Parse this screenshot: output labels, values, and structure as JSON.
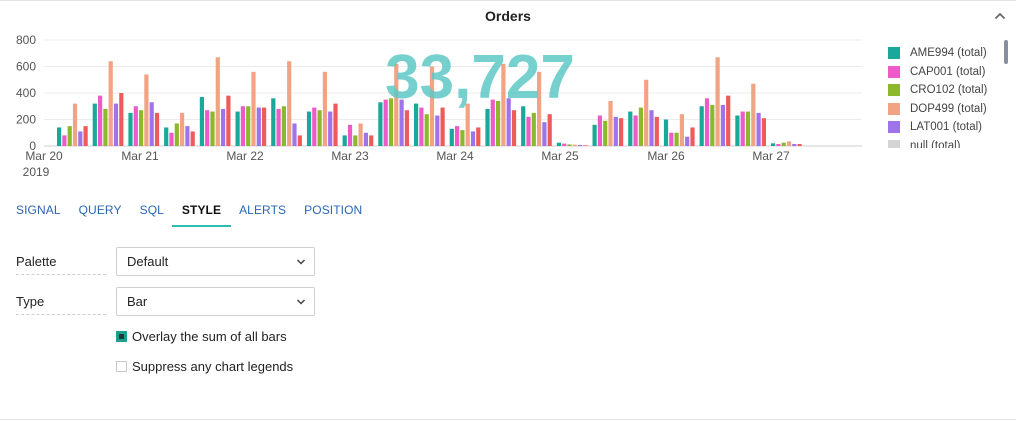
{
  "panel": {
    "title": "Orders"
  },
  "chart_data": {
    "type": "bar",
    "overlay_total": "33,727",
    "y_ticks": [
      "800",
      "600",
      "400",
      "200",
      "0"
    ],
    "ylim": [
      0,
      800
    ],
    "x_labels": [
      "Mar 20",
      "Mar 21",
      "Mar 22",
      "Mar 23",
      "Mar 24",
      "Mar 25",
      "Mar 26",
      "Mar 27"
    ],
    "year_label": "2019",
    "grid": true,
    "legend_position": "right",
    "series": [
      {
        "name": "AME994 (total)",
        "color": "#19a89a",
        "values": [
          140,
          320,
          250,
          140,
          370,
          260,
          360,
          260,
          80,
          330,
          320,
          130,
          280,
          300,
          25,
          160,
          260,
          200,
          300,
          230,
          20
        ]
      },
      {
        "name": "CAP001 (total)",
        "color": "#ee5ac8",
        "values": [
          80,
          380,
          300,
          100,
          270,
          300,
          280,
          290,
          160,
          350,
          290,
          150,
          350,
          220,
          18,
          230,
          230,
          100,
          360,
          260,
          15
        ]
      },
      {
        "name": "CRO102 (total)",
        "color": "#8db82c",
        "values": [
          150,
          280,
          270,
          170,
          260,
          300,
          300,
          270,
          80,
          360,
          240,
          120,
          340,
          250,
          12,
          190,
          290,
          100,
          310,
          260,
          25
        ]
      },
      {
        "name": "DOP499 (total)",
        "color": "#f2a384",
        "values": [
          320,
          640,
          540,
          250,
          670,
          560,
          640,
          560,
          170,
          620,
          600,
          320,
          620,
          560,
          10,
          340,
          500,
          240,
          670,
          470,
          35
        ]
      },
      {
        "name": "LAT001 (total)",
        "color": "#9f74ea",
        "values": [
          110,
          320,
          330,
          150,
          280,
          290,
          170,
          260,
          100,
          350,
          230,
          110,
          360,
          180,
          8,
          220,
          270,
          70,
          310,
          250,
          15
        ]
      },
      {
        "name": "null (total)",
        "color": "#d4d4d4",
        "values": []
      },
      {
        "name": "",
        "color": "#ef5b5b",
        "values": [
          150,
          400,
          250,
          110,
          380,
          290,
          80,
          320,
          80,
          270,
          290,
          140,
          270,
          240,
          5,
          210,
          220,
          140,
          380,
          210,
          15
        ]
      }
    ]
  },
  "tabs": [
    "SIGNAL",
    "QUERY",
    "SQL",
    "STYLE",
    "ALERTS",
    "POSITION"
  ],
  "active_tab": "STYLE",
  "form": {
    "palette": {
      "label": "Palette",
      "value": "Default"
    },
    "type": {
      "label": "Type",
      "value": "Bar"
    },
    "overlay_sum": {
      "label": "Overlay the sum of all bars",
      "checked": true
    },
    "suppress_legends": {
      "label": "Suppress any chart legends",
      "checked": false
    }
  },
  "icons": {
    "collapse": "chevron-up-icon",
    "select": "chevron-down-icon"
  }
}
